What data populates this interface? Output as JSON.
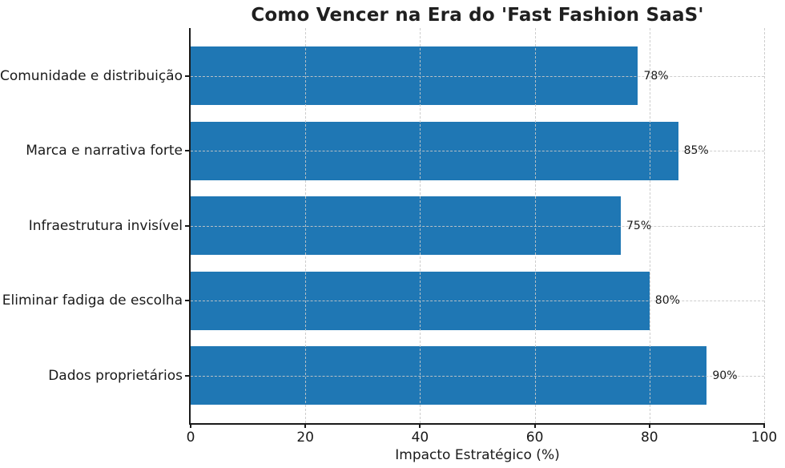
{
  "chart_data": {
    "type": "bar",
    "orientation": "horizontal",
    "title": "Como Vencer na Era do 'Fast Fashion SaaS'",
    "xlabel": "Impacto Estratégico (%)",
    "ylabel": "",
    "categories": [
      "Comunidade e distribuição",
      "Marca e narrativa forte",
      "Infraestrutura invisível",
      "Eliminar fadiga de escolha",
      "Dados proprietários"
    ],
    "values": [
      78,
      85,
      75,
      80,
      90
    ],
    "value_labels": [
      "78%",
      "85%",
      "75%",
      "80%",
      "90%"
    ],
    "xlim": [
      0,
      100
    ],
    "x_ticks": [
      0,
      20,
      40,
      60,
      80,
      100
    ],
    "grid": "dashed",
    "grid_axes": "both",
    "legend": "none",
    "bar_color": "#1f77b4",
    "grid_color": "#c8c8c8",
    "spine_color": "#1a1a1a",
    "text_color": "#1a1a1a",
    "background_color": "#ffffff"
  }
}
